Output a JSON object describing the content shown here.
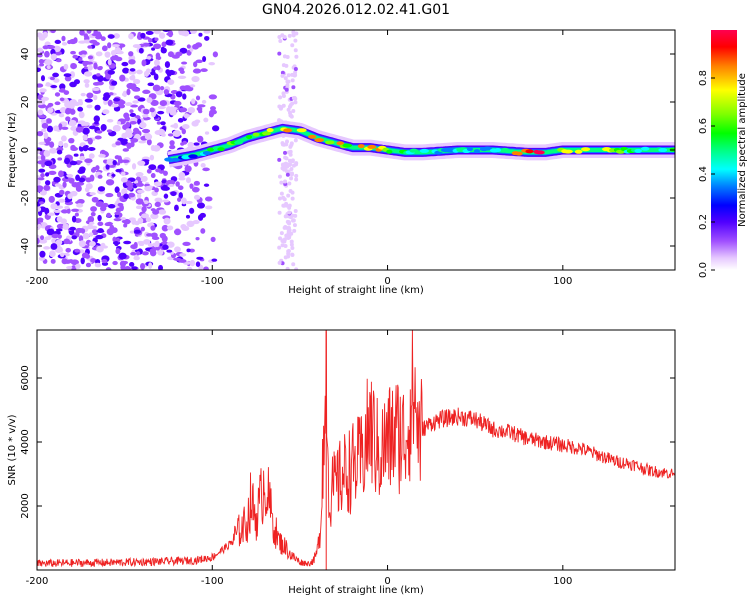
{
  "title": "GN04.2026.012.02.41.G01",
  "chart_data": [
    {
      "type": "heatmap",
      "title": "GN04.2026.012.02.41.G01",
      "xlabel": "Height of straight line (km)",
      "ylabel": "Frequency (Hz)",
      "xlim": [
        -200,
        164
      ],
      "ylim": [
        -50,
        50
      ],
      "xticks": [
        -200,
        -100,
        0,
        100
      ],
      "yticks": [
        -40,
        -20,
        0,
        20,
        40
      ],
      "colorbar": {
        "label": "Normalized spectral amplitude",
        "range": [
          0,
          1
        ],
        "ticks": [
          "0.0",
          "0.2",
          "0.4",
          "0.6",
          "0.8"
        ],
        "colors": [
          "#ffffff",
          "#e6c8ff",
          "#a050ff",
          "#5000ff",
          "#0000ff",
          "#0080ff",
          "#00ffff",
          "#00ff80",
          "#00ff00",
          "#80ff00",
          "#ffff00",
          "#ff8000",
          "#ff0000",
          "#ff0050"
        ]
      },
      "ridge": {
        "height_km": [
          -125,
          -110,
          -100,
          -90,
          -80,
          -70,
          -60,
          -50,
          -40,
          -30,
          -20,
          -10,
          0,
          10,
          20,
          40,
          60,
          80,
          90,
          100,
          120,
          140,
          164
        ],
        "freq_hz": [
          -4,
          -2,
          0,
          2,
          5,
          7,
          9,
          8,
          5,
          3,
          1,
          1,
          0,
          -1,
          -1,
          0,
          0,
          -1,
          -1,
          0,
          0,
          0,
          0
        ],
        "amplitude": [
          0.3,
          0.4,
          0.55,
          0.6,
          0.65,
          0.7,
          0.75,
          0.85,
          0.8,
          0.7,
          0.75,
          0.8,
          0.7,
          0.6,
          0.5,
          0.45,
          0.45,
          0.95,
          1.0,
          0.75,
          0.8,
          0.5,
          0.5
        ]
      },
      "noise_region_km": [
        -200,
        -95
      ],
      "noise_band_km": [
        -62,
        -52
      ]
    },
    {
      "type": "line",
      "xlabel": "Height of straight line (km)",
      "ylabel": "SNR (10 * v/v)",
      "xlim": [
        -200,
        164
      ],
      "ylim": [
        0,
        7500
      ],
      "xticks": [
        -200,
        -100,
        0,
        100
      ],
      "yticks": [
        2000,
        4000,
        6000
      ],
      "color": "#ee2222",
      "series": [
        {
          "name": "SNR",
          "x": [
            -200,
            -180,
            -160,
            -140,
            -120,
            -110,
            -100,
            -95,
            -90,
            -85,
            -80,
            -78,
            -75,
            -70,
            -65,
            -62,
            -58,
            -55,
            -50,
            -45,
            -42,
            -40,
            -38,
            -37,
            -36,
            -35,
            -34,
            -33,
            -32,
            -30,
            -25,
            -20,
            -15,
            -10,
            -5,
            0,
            5,
            10,
            15,
            18,
            20,
            25,
            30,
            40,
            50,
            60,
            70,
            80,
            90,
            100,
            110,
            120,
            130,
            140,
            150,
            164
          ],
          "y": [
            200,
            220,
            230,
            250,
            280,
            300,
            400,
            600,
            800,
            1200,
            1500,
            2200,
            1600,
            2800,
            1400,
            900,
            700,
            450,
            250,
            200,
            300,
            600,
            1500,
            4000,
            3500,
            7450,
            3500,
            2000,
            2500,
            2600,
            3000,
            3200,
            3400,
            4500,
            3600,
            4000,
            4300,
            4100,
            5600,
            4200,
            4400,
            4600,
            4700,
            4800,
            4700,
            4400,
            4300,
            4100,
            4000,
            3900,
            3800,
            3600,
            3400,
            3300,
            3100,
            3000
          ]
        }
      ]
    }
  ]
}
